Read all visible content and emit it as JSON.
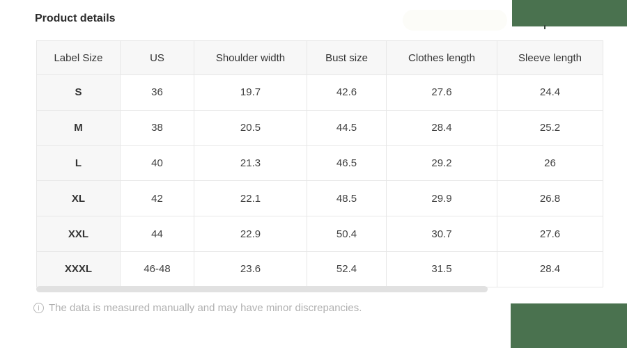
{
  "header": {
    "title": "Product details"
  },
  "size_table": {
    "columns": [
      "Label Size",
      "US",
      "Shoulder width",
      "Bust size",
      "Clothes length",
      "Sleeve length"
    ],
    "rows": [
      {
        "label": "S",
        "values": [
          "36",
          "19.7",
          "42.6",
          "27.6",
          "24.4"
        ]
      },
      {
        "label": "M",
        "values": [
          "38",
          "20.5",
          "44.5",
          "28.4",
          "25.2"
        ]
      },
      {
        "label": "L",
        "values": [
          "40",
          "21.3",
          "46.5",
          "29.2",
          "26"
        ]
      },
      {
        "label": "XL",
        "values": [
          "42",
          "22.1",
          "48.5",
          "29.9",
          "26.8"
        ]
      },
      {
        "label": "XXL",
        "values": [
          "44",
          "22.9",
          "50.4",
          "30.7",
          "27.6"
        ]
      },
      {
        "label": "XXXL",
        "values": [
          "46-48",
          "23.6",
          "52.4",
          "31.5",
          "28.4"
        ]
      }
    ]
  },
  "footer": {
    "info_icon_glyph": "i",
    "note": "The data is measured manually and may have minor discrepancies."
  },
  "colors": {
    "overlay_green": "#4a724f",
    "table_border": "#e7e7e7",
    "header_cell_bg": "#f7f7f7",
    "cell_text": "#424242",
    "title_text": "#2b2b2b",
    "note_text": "#b0b0b0",
    "scrollbar_thumb": "#e1e1e1"
  }
}
